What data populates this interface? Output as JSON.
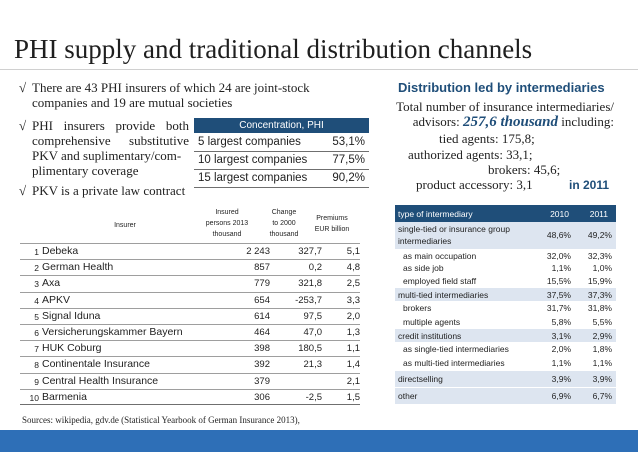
{
  "slide": {
    "title": "PHI supply and traditional distribution channels"
  },
  "bullets": {
    "mark": "√",
    "b1_l1": "There are 43 PHI insurers of which 24 are joint-stock",
    "b1_l2": "companies and 19 are mutual societies",
    "b2_l1": "PHI insurers provide both",
    "b2_l2": "comprehensive substitutive",
    "b2_l3": "PKV and suplimentary/com-",
    "b2_l4": "plimentary coverage",
    "b3": "PKV is a private law contract"
  },
  "concentration": {
    "header": "Concentration, PHI",
    "rows": [
      {
        "label": "5 largest companies",
        "value": "53,1%"
      },
      {
        "label": "10 largest companies",
        "value": "77,5%"
      },
      {
        "label": "15 largest companies",
        "value": "90,2%"
      }
    ]
  },
  "distribution": {
    "heading": "Distribution led by intermediaries",
    "line1": "Total number of insurance intermediaries/",
    "line2_pre": "advisors:",
    "line2_value": "257,6 thousand",
    "line2_post": "including:",
    "line3": "tied agents: 175,8;",
    "line4": "authorized agents: 33,1;",
    "line5": "brokers: 45,6;",
    "line6": "product accessory: 3,1",
    "year": "in 2011"
  },
  "insurer_table": {
    "headers": {
      "insurer": "Insurer",
      "persons_l1": "Insured",
      "persons_l2": "persons 2013",
      "persons_l3": "thousand",
      "change_l1": "Change",
      "change_l2": "to 2000",
      "change_l3": "thousand",
      "premiums_l1": "Premiums",
      "premiums_l2": "EUR billion"
    },
    "rows": [
      {
        "rank": "1",
        "name": "Debeka",
        "persons": "2 243",
        "change": "327,7",
        "premiums": "5,1"
      },
      {
        "rank": "2",
        "name": "German Health",
        "persons": "857",
        "change": "0,2",
        "premiums": "4,8"
      },
      {
        "rank": "3",
        "name": "Axa",
        "persons": "779",
        "change": "321,8",
        "premiums": "2,5"
      },
      {
        "rank": "4",
        "name": "APKV",
        "persons": "654",
        "change": "-253,7",
        "premiums": "3,3"
      },
      {
        "rank": "5",
        "name": "Signal Iduna",
        "persons": "614",
        "change": "97,5",
        "premiums": "2,0"
      },
      {
        "rank": "6",
        "name": "Versicherungskammer Bayern",
        "persons": "464",
        "change": "47,0",
        "premiums": "1,3"
      },
      {
        "rank": "7",
        "name": "HUK Coburg",
        "persons": "398",
        "change": "180,5",
        "premiums": "1,1"
      },
      {
        "rank": "8",
        "name": "Continentale Insurance",
        "persons": "392",
        "change": "21,3",
        "premiums": "1,4"
      },
      {
        "rank": "9",
        "name": "Central Health Insurance",
        "persons": "379",
        "change": "",
        "premiums": "2,1"
      },
      {
        "rank": "10",
        "name": "Barmenia",
        "persons": "306",
        "change": "-2,5",
        "premiums": "1,5"
      }
    ]
  },
  "intermediary_table": {
    "headers": {
      "type": "type of intermediary",
      "y2010": "2010",
      "y2011": "2011"
    },
    "rows": [
      {
        "label_l1": "single-tied or insurance group",
        "label_l2": "intermediaries",
        "v2010": "48,6%",
        "v2011": "49,2%",
        "band": true,
        "tall": true
      },
      {
        "label": "as main occupation",
        "v2010": "32,0%",
        "v2011": "32,3%",
        "indent": true
      },
      {
        "label": "as side job",
        "v2010": "1,1%",
        "v2011": "1,0%",
        "indent": true
      },
      {
        "label": "employed field staff",
        "v2010": "15,5%",
        "v2011": "15,9%",
        "indent": true
      },
      {
        "label": "multi-tied intermediaries",
        "v2010": "37,5%",
        "v2011": "37,3%",
        "band": true
      },
      {
        "label": "brokers",
        "v2010": "31,7%",
        "v2011": "31,8%",
        "indent": true
      },
      {
        "label": "multiple agents",
        "v2010": "5,8%",
        "v2011": "5,5%",
        "indent": true
      },
      {
        "label": "credit institutions",
        "v2010": "3,1%",
        "v2011": "2,9%",
        "band": true
      },
      {
        "label": "as single-tied intermediaries",
        "v2010": "2,0%",
        "v2011": "1,8%",
        "indent": true
      },
      {
        "label": "as multi-tied intermediaries",
        "v2010": "1,1%",
        "v2011": "1,1%",
        "indent": true
      },
      {
        "label": "directselling",
        "v2010": "3,9%",
        "v2011": "3,9%",
        "band": true
      },
      {
        "label": "other",
        "v2010": "6,9%",
        "v2011": "6,7%",
        "band": true
      }
    ]
  },
  "footer": {
    "source": "Sources: wikipedia, gdv.de (Statistical Yearbook of German Insurance 2013),"
  },
  "colors": {
    "accent": "#1f4e79",
    "band": "#dde5f0",
    "bottom_bar": "#2e6fb7"
  }
}
